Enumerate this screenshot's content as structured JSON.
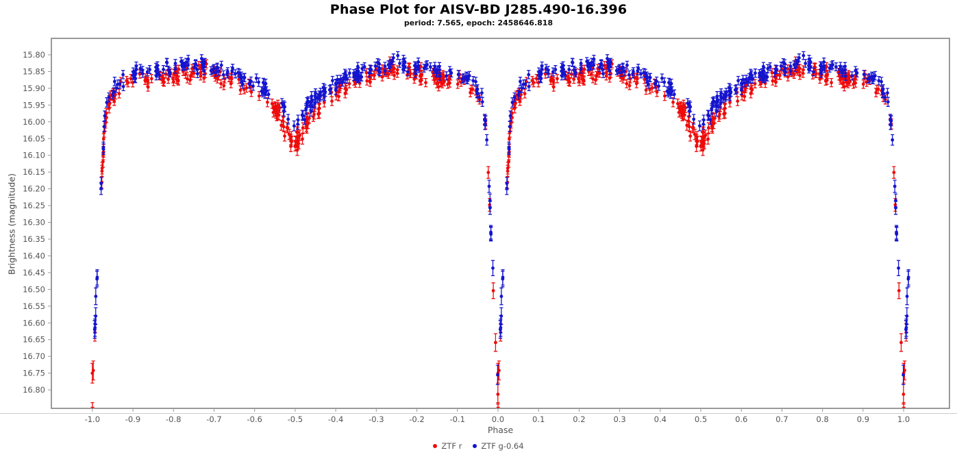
{
  "header": {
    "title": "Phase Plot for AISV-BD J285.490-16.396",
    "subtitle": "period: 7.565, epoch: 2458646.818"
  },
  "legend": {
    "items": [
      {
        "label": "ZTF r",
        "color": "#ee0b0b"
      },
      {
        "label": "ZTF g-0.64",
        "color": "#1414cf"
      }
    ]
  },
  "chart_data": {
    "type": "scatter",
    "title": "Phase Plot for AISV-BD J285.490-16.396",
    "subtitle": "period: 7.565, epoch: 2458646.818",
    "xlabel": "Phase",
    "ylabel": "Brightness (magnitude)",
    "x_ticks": [
      "-1.0",
      "-0.9",
      "-0.8",
      "-0.7",
      "-0.6",
      "-0.5",
      "-0.4",
      "-0.3",
      "-0.2",
      "-0.1",
      "0.0",
      "0.1",
      "0.2",
      "0.3",
      "0.4",
      "0.5",
      "0.6",
      "0.7",
      "0.8",
      "0.9",
      "1.0"
    ],
    "y_ticks": [
      "15.80",
      "15.85",
      "15.90",
      "15.95",
      "16.00",
      "16.05",
      "16.10",
      "16.15",
      "16.20",
      "16.25",
      "16.30",
      "16.35",
      "16.40",
      "16.45",
      "16.50",
      "16.55",
      "16.60",
      "16.65",
      "16.70",
      "16.75",
      "16.80"
    ],
    "xlim": [
      -1.101,
      1.113
    ],
    "ylim_top_to_bottom": [
      15.751,
      16.855
    ],
    "y_axis_inverted_magnitude": true,
    "grid": false,
    "legend_position": "bottom-center",
    "colors": {
      "background": "#ffffff",
      "plot_border": "#808080",
      "axis_underline": "#cccccc",
      "tick": "#999999",
      "tick_label": "#545454",
      "axis_label": "#444444",
      "title": "#000000"
    },
    "eclipse_summary": {
      "primary_eclipse_phase": [
        0.0,
        -1.0,
        1.0
      ],
      "primary_eclipse_depth_mag": 16.8,
      "secondary_eclipse_phase": [
        -0.5,
        0.5
      ],
      "secondary_eclipse_depth_mag_r": 16.07,
      "secondary_eclipse_depth_mag_g": 16.01,
      "out_of_eclipse_max_brightness_mag": 15.83
    },
    "note": "curve arrays give the folded light curve mag(phase) for phase 0 to 0.5 (mirrored about 0 and 0.5); every observation is plotted twice, at phase p and p-1",
    "series": [
      {
        "name": "ZTF r",
        "color": "#ee0b0b",
        "n_obs": 280,
        "curve": [
          [
            0.0,
            16.82
          ],
          [
            0.004,
            16.7
          ],
          [
            0.008,
            16.6
          ],
          [
            0.012,
            16.48
          ],
          [
            0.016,
            16.37
          ],
          [
            0.02,
            16.26
          ],
          [
            0.025,
            16.13
          ],
          [
            0.03,
            16.02
          ],
          [
            0.036,
            15.965
          ],
          [
            0.045,
            15.93
          ],
          [
            0.06,
            15.905
          ],
          [
            0.09,
            15.885
          ],
          [
            0.13,
            15.875
          ],
          [
            0.18,
            15.86
          ],
          [
            0.23,
            15.85
          ],
          [
            0.27,
            15.85
          ],
          [
            0.32,
            15.865
          ],
          [
            0.37,
            15.89
          ],
          [
            0.42,
            15.925
          ],
          [
            0.455,
            15.97
          ],
          [
            0.48,
            16.03
          ],
          [
            0.495,
            16.06
          ],
          [
            0.5,
            16.07
          ]
        ],
        "err_base": 0.012,
        "err_slope": 0.018,
        "err_min": 0.01,
        "err_max": 0.032,
        "bright_ref": 15.85,
        "scatter_scale": 0.9
      },
      {
        "name": "ZTF g-0.64",
        "color": "#1414cf",
        "n_obs": 268,
        "curve": [
          [
            0.0,
            16.81
          ],
          [
            0.004,
            16.69
          ],
          [
            0.008,
            16.58
          ],
          [
            0.012,
            16.46
          ],
          [
            0.016,
            16.35
          ],
          [
            0.02,
            16.24
          ],
          [
            0.025,
            16.11
          ],
          [
            0.03,
            16.0
          ],
          [
            0.036,
            15.945
          ],
          [
            0.045,
            15.91
          ],
          [
            0.06,
            15.885
          ],
          [
            0.09,
            15.865
          ],
          [
            0.13,
            15.85
          ],
          [
            0.18,
            15.838
          ],
          [
            0.23,
            15.828
          ],
          [
            0.27,
            15.828
          ],
          [
            0.32,
            15.843
          ],
          [
            0.37,
            15.866
          ],
          [
            0.42,
            15.898
          ],
          [
            0.455,
            15.932
          ],
          [
            0.48,
            15.972
          ],
          [
            0.495,
            15.998
          ],
          [
            0.5,
            16.008
          ]
        ],
        "err_base": 0.012,
        "err_slope": 0.018,
        "err_min": 0.01,
        "err_max": 0.032,
        "bright_ref": 15.85,
        "scatter_scale": 0.9
      }
    ],
    "sampling": {
      "seed": 42,
      "cluster_count": 48,
      "cluster_fraction": 0.52,
      "cluster_sigma": 0.0035,
      "phase_plot_range": [
        -1.012,
        1.012
      ]
    },
    "marker": {
      "radius": 2.4,
      "cap_half_width": 2.6,
      "line_width": 1.3
    }
  }
}
